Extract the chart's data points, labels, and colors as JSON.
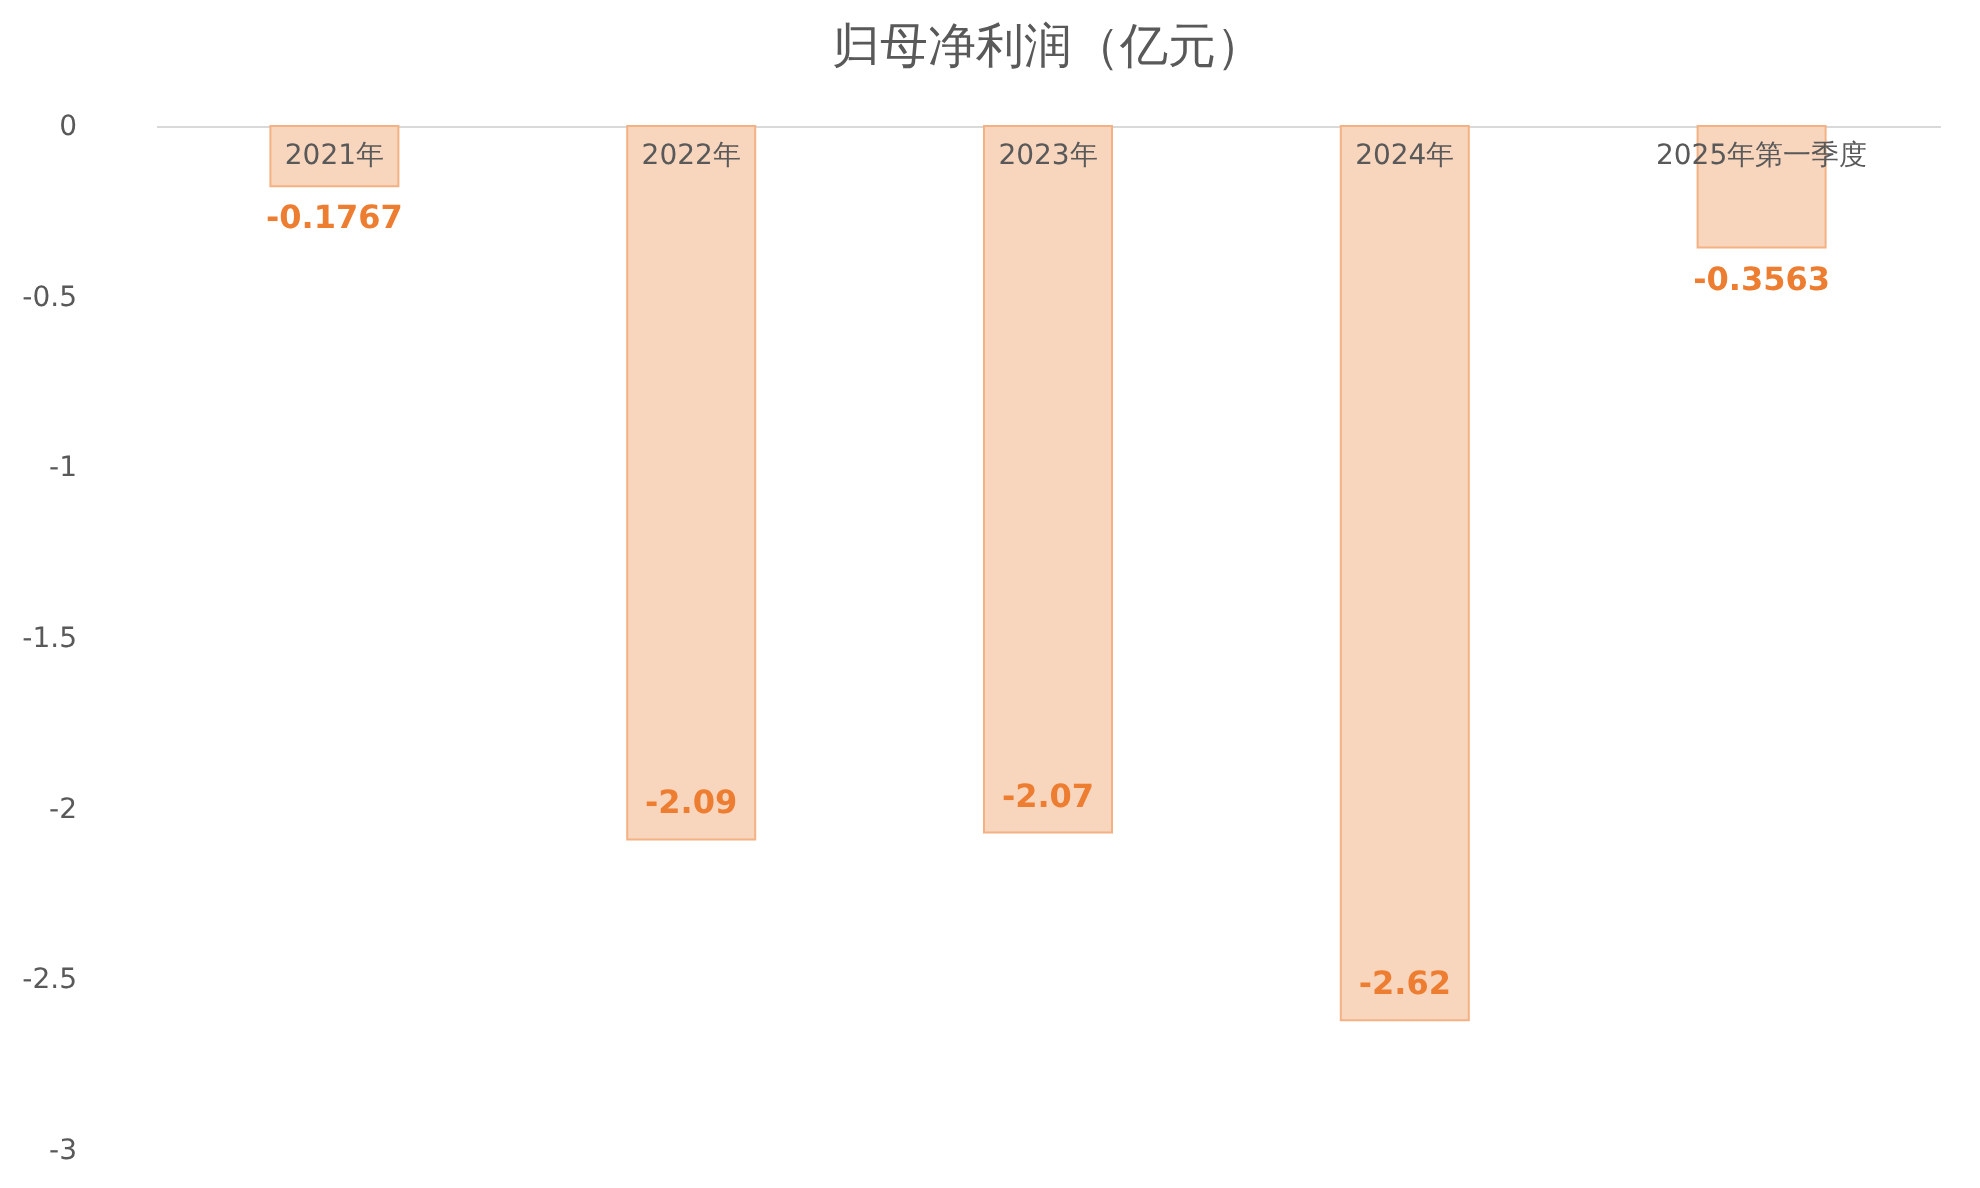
{
  "chart_data": {
    "type": "bar",
    "title": "归母净利润（亿元）",
    "categories": [
      "2021年",
      "2022年",
      "2023年",
      "2024年",
      "2025年第一季度"
    ],
    "values": [
      -0.1767,
      -2.09,
      -2.07,
      -2.62,
      -0.3563
    ],
    "color": "#f8d5bd",
    "ylim": [
      -3,
      0
    ],
    "yticks": [
      0,
      -0.5,
      -1,
      -1.5,
      -2,
      -2.5,
      -3
    ],
    "data_labels": true
  }
}
